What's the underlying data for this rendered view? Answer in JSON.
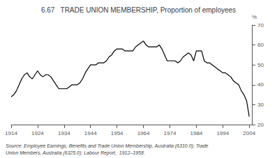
{
  "chart_data": {
    "type": "line",
    "title": "6.67   TRADE UNION MEMBERSHIP, Proportion of employees",
    "ylabel": "%",
    "annotations": [
      "Source: Employee Earnings, Benefits and Trade Union Membership, Australia (6310.0); Trade",
      "Union Members, Australia (6325.0); Labour Report,  1912–1958."
    ],
    "x": [
      1914,
      1915,
      1916,
      1917,
      1918,
      1919,
      1920,
      1921,
      1922,
      1923,
      1924,
      1925,
      1926,
      1927,
      1928,
      1929,
      1930,
      1931,
      1932,
      1933,
      1934,
      1935,
      1936,
      1937,
      1938,
      1939,
      1940,
      1941,
      1942,
      1943,
      1944,
      1945,
      1946,
      1947,
      1948,
      1949,
      1950,
      1951,
      1952,
      1953,
      1954,
      1955,
      1956,
      1957,
      1958,
      1959,
      1960,
      1961,
      1962,
      1963,
      1964,
      1965,
      1966,
      1967,
      1968,
      1969,
      1970,
      1971,
      1972,
      1973,
      1974,
      1975,
      1976,
      1977,
      1978,
      1979,
      1980,
      1981,
      1982,
      1983,
      1984,
      1985,
      1986,
      1987,
      1988,
      1989,
      1990,
      1991,
      1992,
      1993,
      1994,
      1995,
      1996,
      1997,
      1998,
      1999,
      2000,
      2001,
      2002,
      2003,
      2004
    ],
    "values": [
      34,
      35,
      37,
      40,
      43,
      45,
      46,
      44,
      43,
      45,
      47,
      45,
      44,
      45,
      45,
      44,
      42,
      40,
      38,
      38,
      38,
      38,
      39,
      40,
      40,
      40,
      41,
      43,
      46,
      48,
      50,
      50,
      50,
      51,
      51,
      51,
      52,
      54,
      55,
      57,
      58,
      58,
      58,
      57,
      57,
      57,
      57,
      59,
      60,
      61,
      62,
      60,
      59,
      59,
      59,
      59,
      60,
      58,
      55,
      52,
      52,
      52,
      52,
      51,
      52,
      54,
      55,
      56,
      55,
      52,
      57,
      57,
      57,
      52,
      51,
      51,
      50,
      49,
      48,
      47,
      46,
      46,
      45,
      44,
      42,
      41,
      40,
      37,
      35,
      32,
      24
    ],
    "color": "#000000",
    "xlim": [
      1914,
      2005
    ],
    "ylim": [
      20,
      70
    ],
    "xticks": [
      1914,
      1924,
      1934,
      1944,
      1954,
      1964,
      1974,
      1984,
      1994,
      2004
    ],
    "yticks": [
      20,
      30,
      40,
      50,
      60,
      70
    ],
    "grid": false
  }
}
